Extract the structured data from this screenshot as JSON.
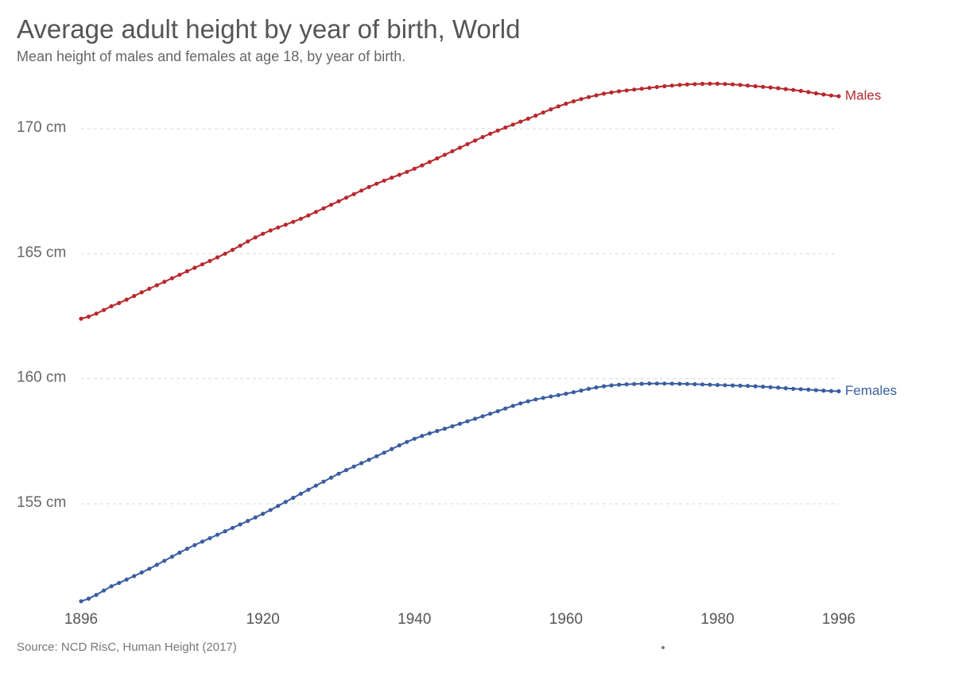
{
  "header": {
    "title": "Average adult height by year of birth, World",
    "subtitle": "Mean height of males and females at age 18, by year of birth."
  },
  "footer": {
    "source": "Source: NCD RisC, Human Height (2017)"
  },
  "chart_data": {
    "type": "line",
    "title": "Average adult height by year of birth, World",
    "subtitle": "Mean height of males and females at age 18, by year of birth.",
    "xlabel": "",
    "ylabel": "",
    "xlim": [
      1896,
      1996
    ],
    "ylim": [
      151,
      172.5
    ],
    "grid": true,
    "y_ticks": [
      155,
      160,
      165,
      170
    ],
    "y_tick_labels": [
      "155 cm",
      "160 cm",
      "165 cm",
      "170 cm"
    ],
    "x_ticks": [
      1896,
      1920,
      1940,
      1960,
      1980,
      1996
    ],
    "x_tick_labels": [
      "1896",
      "1920",
      "1940",
      "1960",
      "1980",
      "1996"
    ],
    "series": [
      {
        "name": "Males",
        "color": "#b8282e",
        "anchors": [
          [
            1896,
            162.4
          ],
          [
            1900,
            162.9
          ],
          [
            1905,
            163.6
          ],
          [
            1910,
            164.3
          ],
          [
            1915,
            165.0
          ],
          [
            1920,
            165.8
          ],
          [
            1925,
            166.4
          ],
          [
            1930,
            167.1
          ],
          [
            1935,
            167.8
          ],
          [
            1940,
            168.4
          ],
          [
            1945,
            169.1
          ],
          [
            1950,
            169.8
          ],
          [
            1955,
            170.4
          ],
          [
            1960,
            171.0
          ],
          [
            1965,
            171.4
          ],
          [
            1970,
            171.6
          ],
          [
            1975,
            171.75
          ],
          [
            1980,
            171.8
          ],
          [
            1985,
            171.7
          ],
          [
            1990,
            171.55
          ],
          [
            1996,
            171.3
          ]
        ]
      },
      {
        "name": "Females",
        "color": "#3a5da0",
        "anchors": [
          [
            1896,
            151.1
          ],
          [
            1900,
            151.7
          ],
          [
            1905,
            152.4
          ],
          [
            1910,
            153.2
          ],
          [
            1915,
            153.9
          ],
          [
            1920,
            154.6
          ],
          [
            1925,
            155.4
          ],
          [
            1930,
            156.2
          ],
          [
            1935,
            156.9
          ],
          [
            1940,
            157.6
          ],
          [
            1945,
            158.1
          ],
          [
            1950,
            158.6
          ],
          [
            1955,
            159.1
          ],
          [
            1960,
            159.4
          ],
          [
            1965,
            159.7
          ],
          [
            1970,
            159.8
          ],
          [
            1975,
            159.8
          ],
          [
            1980,
            159.75
          ],
          [
            1985,
            159.7
          ],
          [
            1990,
            159.6
          ],
          [
            1996,
            159.5
          ]
        ]
      }
    ]
  }
}
